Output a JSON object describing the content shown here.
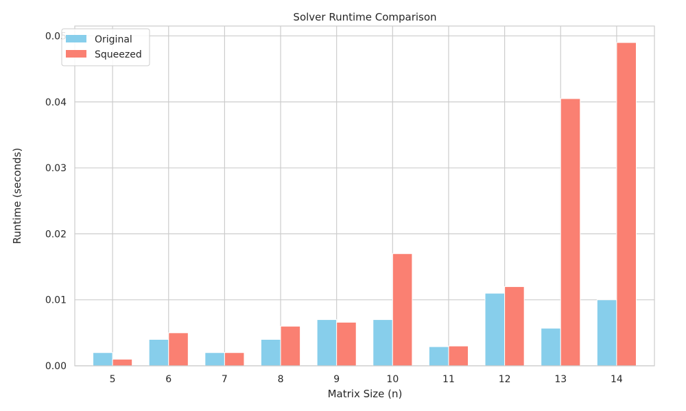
{
  "chart_data": {
    "type": "bar",
    "title": "Solver Runtime Comparison",
    "xlabel": "Matrix Size (n)",
    "ylabel": "Runtime (seconds)",
    "categories": [
      "5",
      "6",
      "7",
      "8",
      "9",
      "10",
      "11",
      "12",
      "13",
      "14"
    ],
    "series": [
      {
        "name": "Original",
        "color": "#87CEEB",
        "values": [
          0.002,
          0.004,
          0.002,
          0.004,
          0.007,
          0.007,
          0.0029,
          0.011,
          0.0057,
          0.01
        ]
      },
      {
        "name": "Squeezed",
        "color": "#FA8072",
        "values": [
          0.001,
          0.005,
          0.002,
          0.006,
          0.0066,
          0.017,
          0.003,
          0.012,
          0.0405,
          0.049
        ]
      }
    ],
    "ylim": [
      0,
      0.0515
    ],
    "yticks": [
      "0.00",
      "0.01",
      "0.02",
      "0.03",
      "0.04",
      "0.05"
    ],
    "grid": true,
    "legend_position": "top-left"
  }
}
